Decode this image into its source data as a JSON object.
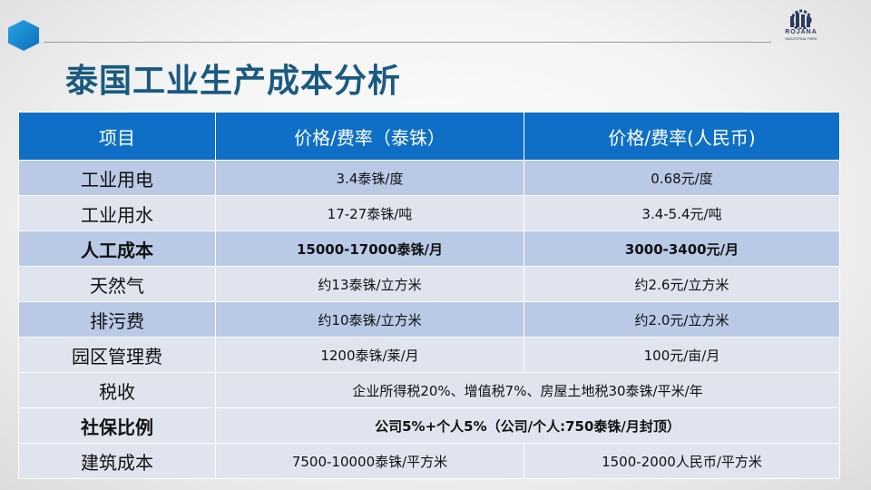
{
  "logo": {
    "line1": "ROJANA",
    "line2": "INDUSTRIAL PARK"
  },
  "title": "泰国工业生产成本分析",
  "table": {
    "headers": [
      "项目",
      "价格/费率（泰铢）",
      "价格/费率(人民币)"
    ],
    "rows": [
      {
        "name": "工业用电",
        "thb": "3.4泰铢/度",
        "cny": "0.68元/度"
      },
      {
        "name": "工业用水",
        "thb": "17-27泰铢/吨",
        "cny": "3.4-5.4元/吨"
      },
      {
        "name": "人工成本",
        "thb": "15000-17000泰铢/月",
        "cny": "3000-3400元/月"
      },
      {
        "name": "天然气",
        "thb": "约13泰铢/立方米",
        "cny": "约2.6元/立方米"
      },
      {
        "name": "排污费",
        "thb": "约10泰铢/立方米",
        "cny": "约2.0元/立方米"
      },
      {
        "name": "园区管理费",
        "thb": "1200泰铢/莱/月",
        "cny": "100元/亩/月"
      },
      {
        "name": "税收",
        "merged": "企业所得税20%、增值税7%、房屋土地税30泰铢/平米/年"
      },
      {
        "name": "社保比例",
        "merged": "公司5%+个人5%（公司/个人:750泰铢/月封顶）"
      },
      {
        "name": "建筑成本",
        "thb": "7500-10000泰铢/平方米",
        "cny": "1500-2000人民币/平方米"
      }
    ]
  }
}
